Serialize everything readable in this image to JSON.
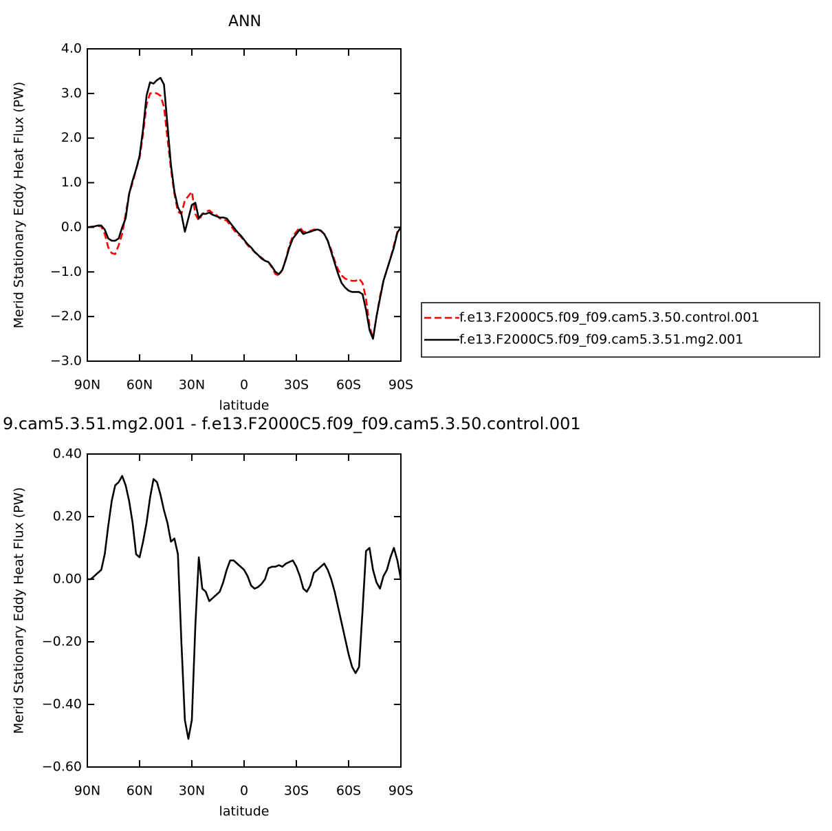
{
  "chart_data": [
    {
      "type": "line",
      "title": "ANN",
      "xlabel": "latitude",
      "ylabel": "Merid Stationary Eddy Heat Flux (PW)",
      "x": [
        90,
        88,
        86,
        84,
        82,
        80,
        78,
        76,
        74,
        72,
        70,
        68,
        66,
        64,
        62,
        60,
        58,
        56,
        54,
        52,
        50,
        48,
        46,
        44,
        42,
        40,
        38,
        36,
        34,
        32,
        30,
        28,
        26,
        24,
        22,
        20,
        18,
        16,
        14,
        12,
        10,
        8,
        6,
        4,
        2,
        0,
        -2,
        -4,
        -6,
        -8,
        -10,
        -12,
        -14,
        -16,
        -18,
        -20,
        -22,
        -24,
        -26,
        -28,
        -30,
        -32,
        -34,
        -36,
        -38,
        -40,
        -42,
        -44,
        -46,
        -48,
        -50,
        -52,
        -54,
        -56,
        -58,
        -60,
        -62,
        -64,
        -66,
        -68,
        -70,
        -72,
        -74,
        -76,
        -78,
        -80,
        -82,
        -84,
        -86,
        -88,
        -90
      ],
      "xlim": [
        90,
        -90
      ],
      "xticks": [
        {
          "value": 90,
          "label": "90N"
        },
        {
          "value": 60,
          "label": "60N"
        },
        {
          "value": 30,
          "label": "30N"
        },
        0,
        {
          "value": -30,
          "label": "30S"
        },
        {
          "value": -60,
          "label": "60S"
        },
        {
          "value": -90,
          "label": "90S"
        }
      ],
      "ylim": [
        -3,
        4
      ],
      "yticks": [
        {
          "value": 4,
          "label": "4.0"
        },
        {
          "value": 3,
          "label": "3.0"
        },
        {
          "value": 2,
          "label": "2.0"
        },
        {
          "value": 1,
          "label": "1.0"
        },
        {
          "value": 0,
          "label": "0.0"
        },
        {
          "value": -1,
          "label": "−1.0"
        },
        {
          "value": -2,
          "label": "−2.0"
        },
        {
          "value": -3,
          "label": "−3.0"
        }
      ],
      "legend": "right",
      "series": [
        {
          "name": "f.e13.F2000C5.f09_f09.cam5.3.50.control.001",
          "color": "#ff0000",
          "dashed": true,
          "values": [
            0,
            0.01,
            0.02,
            0.03,
            0.02,
            -0.15,
            -0.45,
            -0.58,
            -0.6,
            -0.4,
            -0.15,
            0.3,
            0.75,
            1.0,
            1.3,
            1.55,
            2.1,
            2.75,
            3.0,
            3.02,
            3.0,
            2.95,
            2.7,
            2.0,
            1.3,
            0.75,
            0.35,
            0.3,
            0.6,
            0.7,
            0.8,
            0.3,
            0.15,
            0.3,
            0.35,
            0.38,
            0.32,
            0.28,
            0.2,
            0.18,
            0.15,
            0.05,
            -0.05,
            -0.15,
            -0.2,
            -0.3,
            -0.4,
            -0.48,
            -0.55,
            -0.62,
            -0.68,
            -0.75,
            -0.78,
            -0.9,
            -1.05,
            -1.08,
            -0.95,
            -0.7,
            -0.4,
            -0.2,
            -0.1,
            0.0,
            -0.1,
            -0.1,
            -0.08,
            -0.05,
            -0.05,
            -0.08,
            -0.15,
            -0.3,
            -0.5,
            -0.75,
            -0.95,
            -1.08,
            -1.15,
            -1.18,
            -1.2,
            -1.2,
            -1.15,
            -1.25,
            -1.6,
            -2.2,
            -2.5,
            -2.0,
            -1.55,
            -1.2,
            -0.95,
            -0.7,
            -0.4,
            -0.1,
            0
          ]
        },
        {
          "name": "f.e13.F2000C5.f09_f09.cam5.3.51.mg2.001",
          "color": "#000000",
          "dashed": false,
          "values": [
            0,
            0.01,
            0.02,
            0.04,
            0.04,
            -0.05,
            -0.25,
            -0.3,
            -0.3,
            -0.25,
            0.0,
            0.2,
            0.75,
            1.05,
            1.3,
            1.6,
            2.2,
            2.95,
            3.25,
            3.22,
            3.3,
            3.35,
            3.2,
            2.3,
            1.4,
            0.8,
            0.45,
            0.3,
            -0.1,
            0.2,
            0.5,
            0.55,
            0.2,
            0.3,
            0.3,
            0.33,
            0.28,
            0.25,
            0.22,
            0.22,
            0.2,
            0.1,
            0.0,
            -0.1,
            -0.18,
            -0.28,
            -0.38,
            -0.45,
            -0.55,
            -0.62,
            -0.7,
            -0.75,
            -0.78,
            -0.88,
            -1.0,
            -1.05,
            -0.95,
            -0.72,
            -0.45,
            -0.25,
            -0.15,
            -0.05,
            -0.15,
            -0.12,
            -0.1,
            -0.07,
            -0.05,
            -0.07,
            -0.15,
            -0.3,
            -0.55,
            -0.8,
            -1.05,
            -1.25,
            -1.35,
            -1.42,
            -1.45,
            -1.45,
            -1.45,
            -1.5,
            -1.85,
            -2.3,
            -2.5,
            -2.0,
            -1.6,
            -1.2,
            -0.95,
            -0.7,
            -0.45,
            -0.12,
            0
          ]
        }
      ]
    },
    {
      "type": "line",
      "title": "9.cam5.3.51.mg2.001 - f.e13.F2000C5.f09_f09.cam5.3.50.control.001",
      "xlabel": "latitude",
      "ylabel": "Merid Stationary Eddy Heat Flux (PW)",
      "x": [
        90,
        88,
        86,
        84,
        82,
        80,
        78,
        76,
        74,
        72,
        70,
        68,
        66,
        64,
        62,
        60,
        58,
        56,
        54,
        52,
        50,
        48,
        46,
        44,
        42,
        40,
        38,
        36,
        34,
        32,
        30,
        28,
        26,
        24,
        22,
        20,
        18,
        16,
        14,
        12,
        10,
        8,
        6,
        4,
        2,
        0,
        -2,
        -4,
        -6,
        -8,
        -10,
        -12,
        -14,
        -16,
        -18,
        -20,
        -22,
        -24,
        -26,
        -28,
        -30,
        -32,
        -34,
        -36,
        -38,
        -40,
        -42,
        -44,
        -46,
        -48,
        -50,
        -52,
        -54,
        -56,
        -58,
        -60,
        -62,
        -64,
        -66,
        -68,
        -70,
        -72,
        -74,
        -76,
        -78,
        -80,
        -82,
        -84,
        -86,
        -88,
        -90
      ],
      "xlim": [
        90,
        -90
      ],
      "xticks": [
        {
          "value": 90,
          "label": "90N"
        },
        {
          "value": 60,
          "label": "60N"
        },
        {
          "value": 30,
          "label": "30N"
        },
        0,
        {
          "value": -30,
          "label": "30S"
        },
        {
          "value": -60,
          "label": "60S"
        },
        {
          "value": -90,
          "label": "90S"
        }
      ],
      "ylim": [
        -0.6,
        0.4
      ],
      "yticks": [
        {
          "value": 0.4,
          "label": "0.40"
        },
        {
          "value": 0.2,
          "label": "0.20"
        },
        {
          "value": 0,
          "label": "0.00"
        },
        {
          "value": -0.2,
          "label": "−0.20"
        },
        {
          "value": -0.4,
          "label": "−0.40"
        },
        {
          "value": -0.6,
          "label": "−0.60"
        }
      ],
      "series": [
        {
          "color": "#000000",
          "dashed": false,
          "values": [
            0,
            0.0,
            0.01,
            0.02,
            0.03,
            0.08,
            0.17,
            0.25,
            0.3,
            0.31,
            0.33,
            0.3,
            0.25,
            0.18,
            0.08,
            0.07,
            0.12,
            0.18,
            0.26,
            0.32,
            0.31,
            0.27,
            0.22,
            0.18,
            0.12,
            0.13,
            0.08,
            -0.2,
            -0.45,
            -0.51,
            -0.45,
            -0.15,
            0.07,
            -0.03,
            -0.04,
            -0.07,
            -0.06,
            -0.05,
            -0.04,
            -0.01,
            0.03,
            0.06,
            0.06,
            0.05,
            0.04,
            0.03,
            0.01,
            -0.02,
            -0.03,
            -0.025,
            -0.015,
            0.0,
            0.035,
            0.04,
            0.04,
            0.045,
            0.04,
            0.05,
            0.055,
            0.06,
            0.04,
            0.01,
            -0.03,
            -0.04,
            -0.02,
            0.02,
            0.03,
            0.04,
            0.05,
            0.03,
            0.0,
            -0.04,
            -0.09,
            -0.14,
            -0.19,
            -0.24,
            -0.28,
            -0.3,
            -0.28,
            -0.1,
            0.09,
            0.1,
            0.03,
            -0.01,
            -0.03,
            0.01,
            0.03,
            0.07,
            0.1,
            0.06,
            0.0
          ]
        }
      ]
    }
  ]
}
